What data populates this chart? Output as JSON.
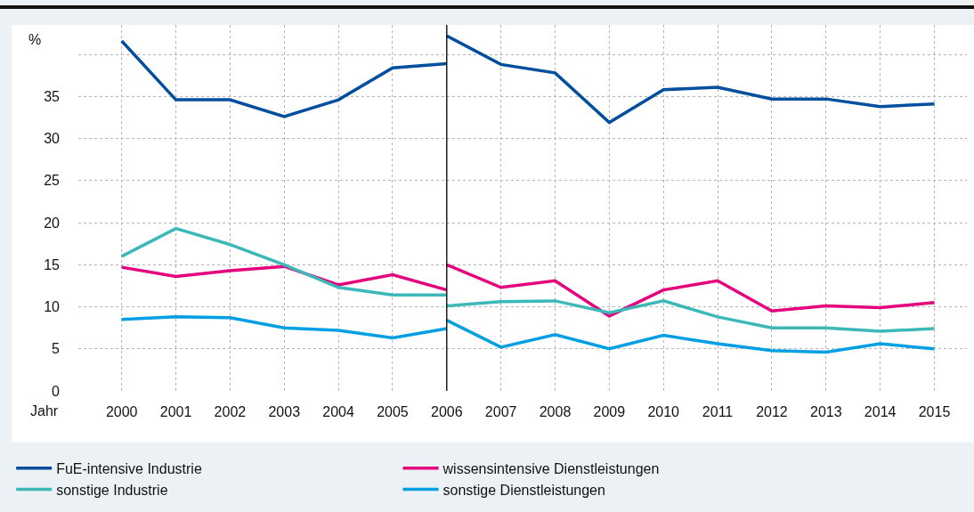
{
  "chart_data": {
    "type": "line",
    "ylabel": "%",
    "xlabel": "Jahr",
    "series": [
      {
        "name": "FuE-intensive Industrie",
        "color": "#004f9f",
        "x": [
          2000,
          2001,
          2002,
          2003,
          2004,
          2005,
          2006
        ],
        "values": [
          41.6,
          34.6,
          34.6,
          32.6,
          34.6,
          38.4,
          38.9
        ]
      },
      {
        "name": "wissensintensive Dienstleistungen",
        "color": "#e5007d",
        "x": [
          2000,
          2001,
          2002,
          2003,
          2004,
          2005,
          2006
        ],
        "values": [
          14.7,
          13.6,
          14.3,
          14.8,
          12.6,
          13.8,
          12.0
        ]
      },
      {
        "name": "sonstige Industrie",
        "color": "#3cb8b8",
        "x": [
          2000,
          2001,
          2002,
          2003,
          2004,
          2005,
          2006
        ],
        "values": [
          16.0,
          19.3,
          17.4,
          15.0,
          12.3,
          11.4,
          11.4
        ]
      },
      {
        "name": "sonstige Dienstleistungen",
        "color": "#009fe3",
        "x": [
          2000,
          2001,
          2002,
          2003,
          2004,
          2005,
          2006
        ],
        "values": [
          8.5,
          8.8,
          8.7,
          7.5,
          7.2,
          6.3,
          7.4
        ]
      },
      {
        "color": "#004f9f",
        "x": [
          2006,
          2007,
          2008,
          2009,
          2010,
          2011,
          2012,
          2013,
          2014,
          2015
        ],
        "values": [
          42.2,
          38.8,
          37.8,
          31.9,
          35.8,
          36.1,
          34.7,
          34.7,
          33.8,
          34.1
        ]
      },
      {
        "color": "#e5007d",
        "x": [
          2006,
          2007,
          2008,
          2009,
          2010,
          2011,
          2012,
          2013,
          2014,
          2015
        ],
        "values": [
          15.0,
          12.3,
          13.1,
          8.9,
          12.0,
          13.1,
          9.5,
          10.1,
          9.9,
          10.5
        ]
      },
      {
        "color": "#3cb8b8",
        "x": [
          2006,
          2007,
          2008,
          2009,
          2010,
          2011,
          2012,
          2013,
          2014,
          2015
        ],
        "values": [
          10.1,
          10.6,
          10.7,
          9.3,
          10.7,
          8.8,
          7.5,
          7.5,
          7.1,
          7.4
        ]
      },
      {
        "color": "#009fe3",
        "x": [
          2006,
          2007,
          2008,
          2009,
          2010,
          2011,
          2012,
          2013,
          2014,
          2015
        ],
        "values": [
          8.4,
          5.2,
          6.7,
          5.0,
          6.6,
          5.6,
          4.8,
          4.6,
          5.6,
          5.0
        ]
      }
    ],
    "xlim": [
      1999.2,
      2015.6
    ],
    "xticks": [
      2000,
      2001,
      2002,
      2003,
      2004,
      2005,
      2006,
      2007,
      2008,
      2009,
      2010,
      2011,
      2012,
      2013,
      2014,
      2015
    ],
    "ylim": [
      0,
      43.5
    ],
    "yticks": [
      0,
      5,
      10,
      15,
      20,
      25,
      30,
      35,
      {
        "value": 40,
        "label": null
      }
    ],
    "ref_lines": [
      {
        "axis": "x",
        "value": 2006,
        "color": "#000000"
      }
    ],
    "grid": true,
    "legend": "bottom",
    "marker": "none",
    "line_style": "solid"
  }
}
